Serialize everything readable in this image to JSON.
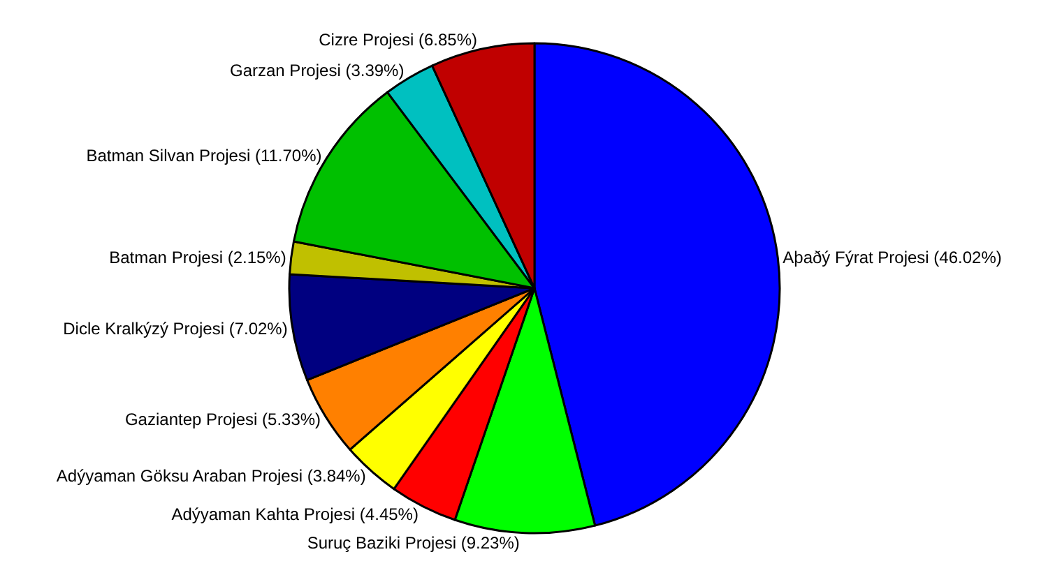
{
  "chart_data": {
    "type": "pie",
    "categories": [
      "Aþaðý Fýrat Projesi",
      "Suruç Baziki Projesi",
      "Adýyaman Kahta Projesi",
      "Adýyaman Göksu Araban Projesi",
      "Gaziantep Projesi",
      "Dicle Kralkýzý Projesi",
      "Batman Projesi",
      "Batman Silvan Projesi",
      "Garzan Projesi",
      "Cizre Projesi"
    ],
    "values": [
      46.02,
      9.23,
      4.45,
      3.84,
      5.33,
      7.02,
      2.15,
      11.7,
      3.39,
      6.85
    ],
    "value_labels": [
      "(46.02%)",
      "(9.23%)",
      "(4.45%)",
      "(3.84%)",
      "(5.33%)",
      "(7.02%)",
      "(2.15%)",
      "(11.70%)",
      "(3.39%)",
      "(6.85%)"
    ],
    "colors": [
      "#0000ff",
      "#00ff00",
      "#ff0000",
      "#ffff00",
      "#ff8000",
      "#000080",
      "#c0c000",
      "#00c000",
      "#00c0c0",
      "#c00000"
    ],
    "legend": false
  }
}
